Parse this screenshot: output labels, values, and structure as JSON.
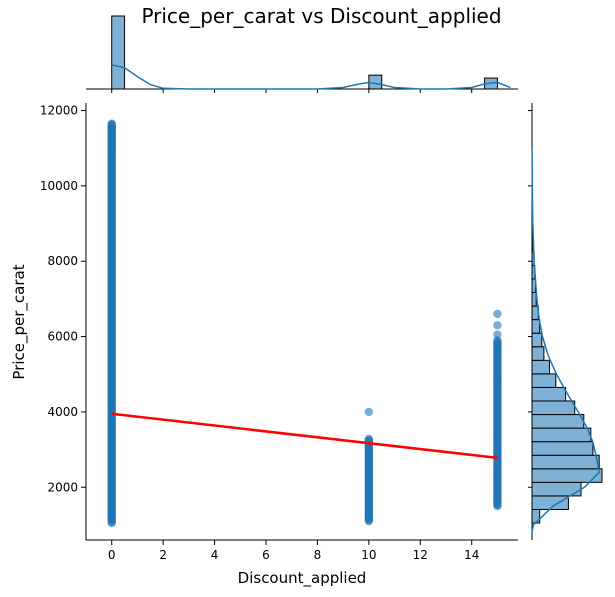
{
  "chart_data": {
    "type": "scatter",
    "title": "Price_per_carat vs Discount_applied",
    "xlabel": "Discount_applied",
    "ylabel": "Price_per_carat",
    "xlim": [
      -1,
      15.8
    ],
    "ylim": [
      600,
      12200
    ],
    "xticks": [
      0,
      2,
      4,
      6,
      8,
      10,
      12,
      14
    ],
    "yticks": [
      2000,
      4000,
      6000,
      8000,
      10000,
      12000
    ],
    "grid": false,
    "colors": {
      "points": "#1f77b4",
      "regression": "#ff0000",
      "hist_fill": "#7fb0d5",
      "kde": "#1f77b4"
    },
    "scatter_groups": [
      {
        "x": 0,
        "y_min": 1050,
        "y_max": 11650,
        "outliers": [
          11650,
          11500,
          11350,
          11200,
          11050
        ]
      },
      {
        "x": 10,
        "y_min": 1100,
        "y_max": 3300,
        "outliers": [
          4000
        ]
      },
      {
        "x": 15,
        "y_min": 1500,
        "y_max": 5900,
        "outliers": [
          6600,
          6300,
          6050
        ]
      }
    ],
    "regression_line": {
      "x": [
        0,
        15
      ],
      "y": [
        3950,
        2780
      ]
    },
    "top_histogram": {
      "bin_width": 0.5,
      "bins": [
        {
          "x_start": 0,
          "count": 1.0
        },
        {
          "x_start": 10,
          "count": 0.19
        },
        {
          "x_start": 14.5,
          "count": 0.15
        }
      ],
      "kde": {
        "x": [
          0,
          0.5,
          1,
          1.5,
          2,
          3,
          5,
          8,
          9,
          9.5,
          10,
          10.5,
          11,
          12,
          13,
          14,
          14.5,
          15,
          15.5
        ],
        "y": [
          0.33,
          0.29,
          0.17,
          0.06,
          0.01,
          0,
          0,
          0,
          0.02,
          0.06,
          0.09,
          0.06,
          0.02,
          0,
          0,
          0.02,
          0.07,
          0.09,
          0.02
        ]
      }
    },
    "right_histogram": {
      "bin_height": 360,
      "bins": [
        {
          "y_start": 1050,
          "count": 0.11
        },
        {
          "y_start": 1410,
          "count": 0.52
        },
        {
          "y_start": 1770,
          "count": 0.7
        },
        {
          "y_start": 2130,
          "count": 1.0
        },
        {
          "y_start": 2490,
          "count": 0.96
        },
        {
          "y_start": 2850,
          "count": 0.87
        },
        {
          "y_start": 3210,
          "count": 0.84
        },
        {
          "y_start": 3570,
          "count": 0.74
        },
        {
          "y_start": 3930,
          "count": 0.61
        },
        {
          "y_start": 4290,
          "count": 0.48
        },
        {
          "y_start": 4650,
          "count": 0.34
        },
        {
          "y_start": 5010,
          "count": 0.25
        },
        {
          "y_start": 5370,
          "count": 0.17
        },
        {
          "y_start": 5730,
          "count": 0.14
        },
        {
          "y_start": 6090,
          "count": 0.11
        },
        {
          "y_start": 6450,
          "count": 0.09
        },
        {
          "y_start": 6810,
          "count": 0.06
        },
        {
          "y_start": 7170,
          "count": 0.05
        },
        {
          "y_start": 7530,
          "count": 0.04
        },
        {
          "y_start": 7890,
          "count": 0.03
        },
        {
          "y_start": 8250,
          "count": 0.015
        },
        {
          "y_start": 8610,
          "count": 0.01
        },
        {
          "y_start": 8970,
          "count": 0.008
        },
        {
          "y_start": 9330,
          "count": 0.006
        },
        {
          "y_start": 9690,
          "count": 0.004
        },
        {
          "y_start": 10050,
          "count": 0.002
        }
      ],
      "kde": {
        "y": [
          800,
          1000,
          1500,
          2000,
          2400,
          2800,
          3200,
          3600,
          4000,
          4500,
          5000,
          5500,
          6000,
          6500,
          7000,
          8000,
          9000,
          10000,
          11000
        ],
        "x": [
          0,
          0.02,
          0.3,
          0.75,
          0.96,
          0.92,
          0.87,
          0.78,
          0.66,
          0.5,
          0.35,
          0.23,
          0.15,
          0.1,
          0.07,
          0.03,
          0.012,
          0.004,
          0.001
        ]
      }
    }
  }
}
